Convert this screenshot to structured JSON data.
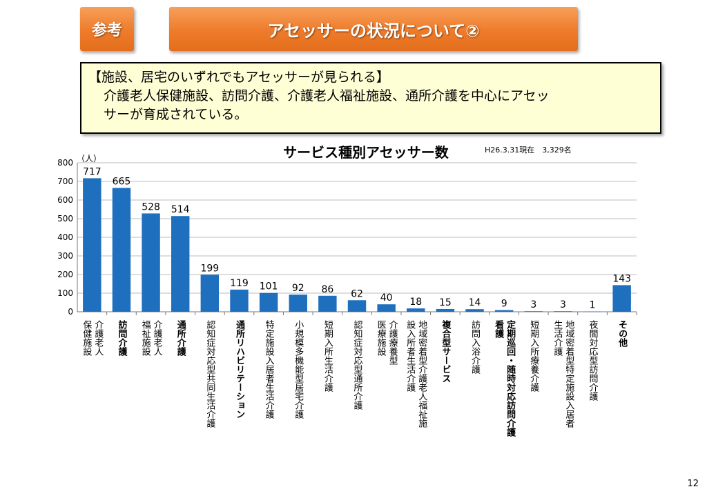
{
  "header": {
    "badge": "参考",
    "title": "アセッサーの状況について②"
  },
  "summary": {
    "heading": "【施設、居宅のいずれでもアセッサーが見られる】",
    "line2": "介護老人保健施設、訪問介護、介護老人福祉施設、通所介護を中心にアセッ",
    "line3": "サーが育成されている。"
  },
  "chart_data": {
    "type": "bar",
    "title": "サービス種別アセッサー数",
    "note": "H26.3.31現在　3,329名",
    "ylabel": "（人）",
    "ylim": [
      0,
      800
    ],
    "yticks": [
      0,
      100,
      200,
      300,
      400,
      500,
      600,
      700,
      800
    ],
    "grid": true,
    "bar_color": "#1f6fbf",
    "categories": [
      {
        "label": [
          "介護老人",
          "保健施設"
        ],
        "bold": false
      },
      {
        "label": [
          "訪問介護"
        ],
        "bold": true
      },
      {
        "label": [
          "介護老人",
          "福祉施設"
        ],
        "bold": false
      },
      {
        "label": [
          "通所介護"
        ],
        "bold": true
      },
      {
        "label": [
          "認知症対応型共同生活介護"
        ],
        "bold": false
      },
      {
        "label": [
          "通所リハビリテーション"
        ],
        "bold": true
      },
      {
        "label": [
          "特定施設入居者生活介護"
        ],
        "bold": false
      },
      {
        "label": [
          "小規模多機能型居宅介護"
        ],
        "bold": false
      },
      {
        "label": [
          "短期入所生活介護"
        ],
        "bold": false
      },
      {
        "label": [
          "認知症対応型通所介護"
        ],
        "bold": false
      },
      {
        "label": [
          "介護療養型",
          "医療施設"
        ],
        "bold": false
      },
      {
        "label": [
          "地域密着型介護老人福祉施",
          "設入所者生活介護"
        ],
        "bold": false
      },
      {
        "label": [
          "複合型サービス"
        ],
        "bold": true
      },
      {
        "label": [
          "訪問入浴介護"
        ],
        "bold": false
      },
      {
        "label": [
          "定期巡回・随時対応訪問介護",
          "看護"
        ],
        "bold": true
      },
      {
        "label": [
          "短期入所療養介護"
        ],
        "bold": false
      },
      {
        "label": [
          "地域密着型特定施設入居者",
          "生活介護"
        ],
        "bold": false
      },
      {
        "label": [
          "夜間対応型訪問介護"
        ],
        "bold": false
      },
      {
        "label": [
          "その他"
        ],
        "bold": true
      }
    ],
    "values": [
      717,
      665,
      528,
      514,
      199,
      119,
      101,
      92,
      86,
      62,
      40,
      18,
      15,
      14,
      9,
      3,
      3,
      1,
      143
    ]
  },
  "page_number": "12"
}
